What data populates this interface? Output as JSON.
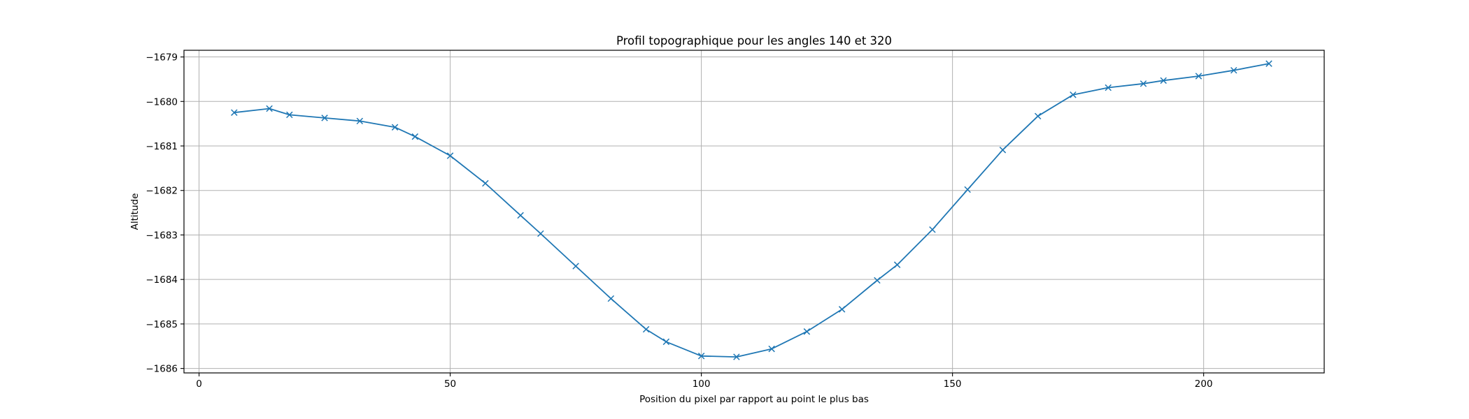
{
  "chart_data": {
    "type": "line",
    "title": "Profil topographique pour les angles 140 et 320",
    "xlabel": "Position du pixel par rapport au point le plus bas",
    "ylabel": "Altitude",
    "xlim": [
      -3,
      224
    ],
    "ylim": [
      -1686.1,
      -1678.85
    ],
    "xticks": [
      0,
      50,
      100,
      150,
      200
    ],
    "yticks": [
      -1686,
      -1685,
      -1684,
      -1683,
      -1682,
      -1681,
      -1680,
      -1679
    ],
    "grid": true,
    "marker": "x",
    "line_color": "#1f77b4",
    "series": [
      {
        "x": [
          7,
          14,
          18,
          25,
          32,
          39,
          43,
          50,
          57,
          64,
          68,
          75,
          82,
          89,
          93,
          100,
          107,
          114,
          121,
          128,
          135,
          139,
          146,
          153,
          160,
          167,
          174,
          181,
          188,
          192,
          199,
          206,
          213
        ],
        "y": [
          -1680.25,
          -1680.16,
          -1680.3,
          -1680.37,
          -1680.44,
          -1680.58,
          -1680.79,
          -1681.22,
          -1681.84,
          -1682.56,
          -1682.97,
          -1683.7,
          -1684.43,
          -1685.12,
          -1685.4,
          -1685.72,
          -1685.74,
          -1685.56,
          -1685.17,
          -1684.67,
          -1684.02,
          -1683.67,
          -1682.88,
          -1681.98,
          -1681.09,
          -1680.33,
          -1679.85,
          -1679.69,
          -1679.6,
          -1679.53,
          -1679.43,
          -1679.3,
          -1679.15
        ]
      }
    ]
  }
}
